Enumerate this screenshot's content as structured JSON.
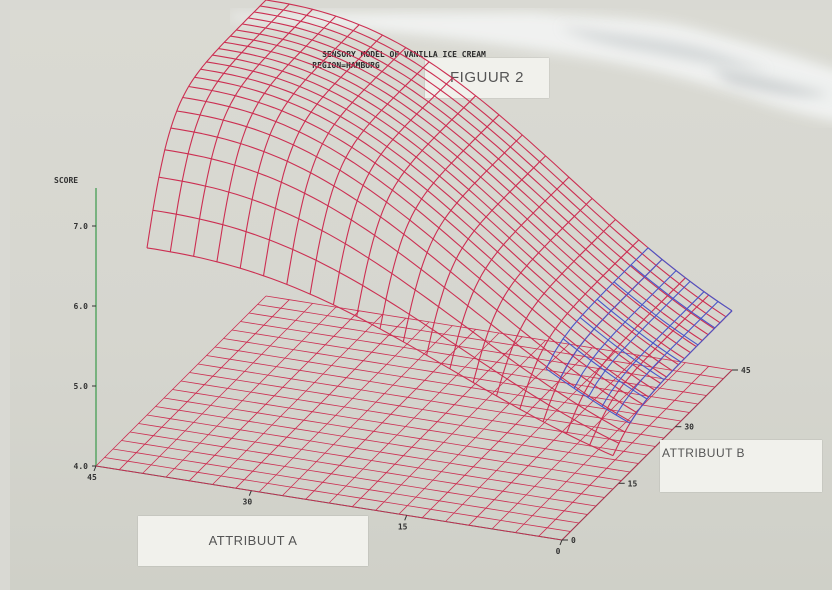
{
  "figure_label": "FIGUUR 2",
  "chart_data": {
    "type": "surface",
    "title": "SENSORY MODEL OF VANILLA ICE CREAM",
    "subtitle": "REGION=HAMBURG",
    "zlabel": "SCORE",
    "xlabel": "ATTRIBUUT A",
    "ylabel": "ATTRIBUUT B",
    "z_ticks": [
      "4.0",
      "5.0",
      "6.0",
      "7.0"
    ],
    "x_ticks": [
      "45",
      "30",
      "15",
      "0"
    ],
    "y_ticks": [
      "0",
      "15",
      "30",
      "45"
    ],
    "xlim": [
      0,
      45
    ],
    "ylim": [
      0,
      45
    ],
    "zlim": [
      4.0,
      7.0
    ],
    "peak": {
      "attribuut_a": 45,
      "attribuut_b": 45,
      "score": 7.7
    },
    "mesh_color": "#cc2f52",
    "highlight_color": "#4a56c8"
  }
}
